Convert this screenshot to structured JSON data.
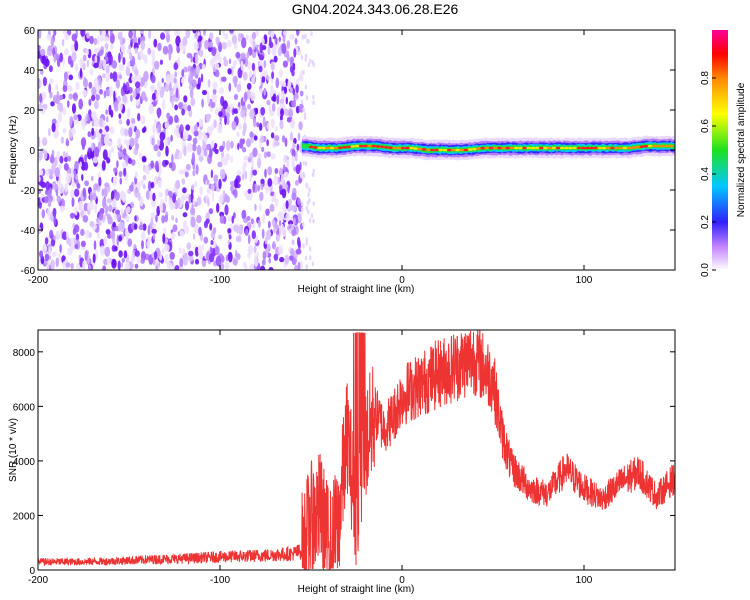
{
  "title": "GN04.2024.343.06.28.E26",
  "chart_data": [
    {
      "type": "heatmap",
      "xlabel": "Height of straight line (km)",
      "ylabel": "Frequency (Hz)",
      "xlim": [
        -200,
        150
      ],
      "ylim": [
        -60,
        60
      ],
      "xticks": [
        -200,
        -100,
        0,
        100
      ],
      "yticks": [
        -60,
        -40,
        -20,
        0,
        20,
        40,
        60
      ],
      "noise_region_x": [
        -200,
        -55
      ],
      "signal_trace": {
        "x": [
          -55,
          -45,
          -35,
          -25,
          -15,
          -5,
          5,
          15,
          25,
          35,
          45,
          55,
          65,
          75,
          85,
          95,
          105,
          115,
          125,
          135,
          150
        ],
        "frequency": [
          2,
          1,
          1,
          2,
          2,
          1,
          1,
          0,
          0,
          0,
          1,
          1,
          1,
          1,
          1,
          1,
          1,
          1,
          1,
          2,
          2
        ]
      },
      "colorbar": {
        "label": "Normalized spectral amplitude",
        "range": [
          0.0,
          1.0
        ],
        "ticks": [
          "0.0",
          "0.2",
          "0.4",
          "0.6",
          "0.8"
        ],
        "colors": [
          "#ffffff",
          "#b060ff",
          "#2020ff",
          "#00c0ff",
          "#20e020",
          "#ffff00",
          "#ff9000",
          "#ff0000",
          "#ff0090"
        ]
      }
    },
    {
      "type": "line",
      "xlabel": "Height of straight line (km)",
      "ylabel": "SNR (10 * v/v)",
      "xlim": [
        -200,
        150
      ],
      "ylim": [
        0,
        8800
      ],
      "xticks": [
        -200,
        -100,
        0,
        100
      ],
      "yticks": [
        0,
        2000,
        4000,
        6000,
        8000
      ],
      "series": [
        {
          "color": "#ee3333",
          "x": [
            -200,
            -180,
            -160,
            -140,
            -120,
            -100,
            -80,
            -60,
            -55,
            -50,
            -45,
            -40,
            -35,
            -30,
            -25,
            -20,
            -15,
            -10,
            -5,
            0,
            10,
            20,
            30,
            40,
            50,
            55,
            60,
            70,
            80,
            90,
            100,
            110,
            120,
            130,
            140,
            150
          ],
          "values": [
            300,
            300,
            320,
            380,
            420,
            480,
            520,
            600,
            700,
            1800,
            2200,
            800,
            1700,
            5000,
            2000,
            4500,
            5800,
            5200,
            5600,
            6400,
            6800,
            7200,
            7500,
            7800,
            7000,
            5000,
            3800,
            3000,
            2800,
            3700,
            3000,
            2600,
            3200,
            3600,
            2700,
            3400
          ]
        }
      ]
    }
  ]
}
